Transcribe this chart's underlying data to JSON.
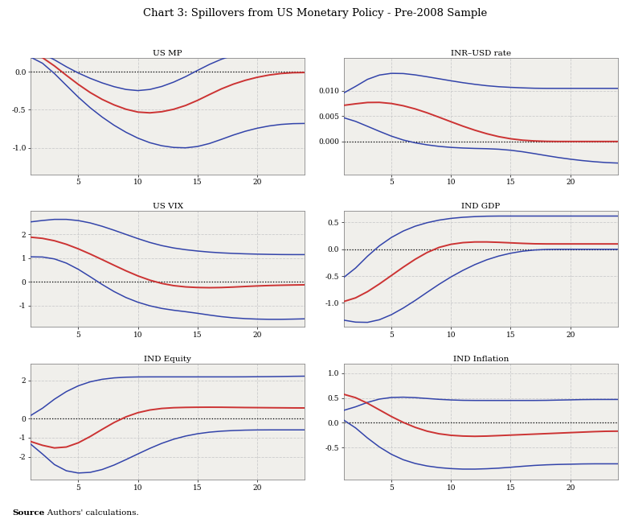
{
  "title": "Chart 3: Spillovers from US Monetary Policy - Pre-2008 Sample",
  "source_text": "Source: Authors' calculations.",
  "panels": [
    {
      "title": "US MP",
      "ylim": [
        -1.35,
        0.18
      ],
      "yticks": [
        0.0,
        -0.5,
        -1.0
      ],
      "yticklabels": [
        "0.0",
        "-0.5",
        "-1.0"
      ],
      "x": [
        1,
        2,
        3,
        4,
        5,
        6,
        7,
        8,
        9,
        10,
        11,
        12,
        13,
        14,
        15,
        16,
        17,
        18,
        19,
        20,
        21,
        22,
        23,
        24
      ],
      "red": [
        0.27,
        0.2,
        0.08,
        -0.05,
        -0.17,
        -0.28,
        -0.37,
        -0.44,
        -0.5,
        -0.54,
        -0.55,
        -0.53,
        -0.5,
        -0.45,
        -0.38,
        -0.3,
        -0.22,
        -0.16,
        -0.11,
        -0.07,
        -0.04,
        -0.02,
        -0.01,
        -0.01
      ],
      "blue_upper": [
        0.3,
        0.25,
        0.16,
        0.06,
        -0.02,
        -0.09,
        -0.15,
        -0.2,
        -0.24,
        -0.26,
        -0.24,
        -0.2,
        -0.14,
        -0.07,
        0.02,
        0.1,
        0.17,
        0.22,
        0.26,
        0.28,
        0.3,
        0.31,
        0.32,
        0.33
      ],
      "blue_lower": [
        0.22,
        0.13,
        -0.02,
        -0.18,
        -0.34,
        -0.48,
        -0.6,
        -0.71,
        -0.8,
        -0.88,
        -0.94,
        -0.98,
        -1.0,
        -1.01,
        -0.99,
        -0.95,
        -0.89,
        -0.83,
        -0.78,
        -0.74,
        -0.71,
        -0.69,
        -0.68,
        -0.68
      ]
    },
    {
      "title": "INR–USD rate",
      "ylim": [
        -0.0065,
        0.0165
      ],
      "yticks": [
        0.01,
        0.005,
        0.0
      ],
      "yticklabels": [
        "0.010",
        "0.005",
        "0.000"
      ],
      "x": [
        1,
        2,
        3,
        4,
        5,
        6,
        7,
        8,
        9,
        10,
        11,
        12,
        13,
        14,
        15,
        16,
        17,
        18,
        19,
        20,
        21,
        22,
        23,
        24
      ],
      "red": [
        0.007,
        0.0075,
        0.0078,
        0.0078,
        0.0076,
        0.0071,
        0.0065,
        0.0057,
        0.0048,
        0.0039,
        0.003,
        0.0022,
        0.0015,
        0.0009,
        0.0005,
        0.0002,
        0.0001,
        0.0,
        0.0,
        0.0,
        0.0,
        0.0,
        0.0,
        0.0
      ],
      "blue_upper": [
        0.009,
        0.011,
        0.0125,
        0.0133,
        0.0136,
        0.0135,
        0.0132,
        0.0128,
        0.0124,
        0.012,
        0.0116,
        0.0113,
        0.011,
        0.0108,
        0.0107,
        0.0106,
        0.0105,
        0.0105,
        0.0105,
        0.0105,
        0.0105,
        0.0105,
        0.0105,
        0.0105
      ],
      "blue_lower": [
        0.005,
        0.004,
        0.003,
        0.002,
        0.001,
        0.0002,
        -0.0003,
        -0.0007,
        -0.001,
        -0.0012,
        -0.0013,
        -0.0014,
        -0.0014,
        -0.0015,
        -0.0017,
        -0.002,
        -0.0024,
        -0.0028,
        -0.0032,
        -0.0035,
        -0.0038,
        -0.004,
        -0.0042,
        -0.0043
      ]
    },
    {
      "title": "US VIX",
      "ylim": [
        -1.9,
        3.0
      ],
      "yticks": [
        2,
        1,
        0,
        -1
      ],
      "yticklabels": [
        "2",
        "1",
        "0",
        "-1"
      ],
      "x": [
        1,
        2,
        3,
        4,
        5,
        6,
        7,
        8,
        9,
        10,
        11,
        12,
        13,
        14,
        15,
        16,
        17,
        18,
        19,
        20,
        21,
        22,
        23,
        24
      ],
      "red": [
        1.9,
        1.85,
        1.75,
        1.6,
        1.4,
        1.18,
        0.94,
        0.7,
        0.46,
        0.24,
        0.06,
        -0.08,
        -0.17,
        -0.22,
        -0.24,
        -0.25,
        -0.24,
        -0.22,
        -0.19,
        -0.17,
        -0.15,
        -0.14,
        -0.13,
        -0.12
      ],
      "blue_upper": [
        2.5,
        2.6,
        2.65,
        2.65,
        2.6,
        2.5,
        2.35,
        2.18,
        2.0,
        1.82,
        1.65,
        1.52,
        1.42,
        1.35,
        1.3,
        1.25,
        1.22,
        1.2,
        1.18,
        1.17,
        1.16,
        1.15,
        1.15,
        1.15
      ],
      "blue_lower": [
        1.05,
        1.08,
        1.0,
        0.82,
        0.55,
        0.22,
        -0.12,
        -0.42,
        -0.68,
        -0.87,
        -1.02,
        -1.13,
        -1.2,
        -1.25,
        -1.32,
        -1.4,
        -1.47,
        -1.52,
        -1.55,
        -1.57,
        -1.58,
        -1.58,
        -1.57,
        -1.55
      ]
    },
    {
      "title": "IND GDP",
      "ylim": [
        -1.45,
        0.72
      ],
      "yticks": [
        0.5,
        0.0,
        -0.5,
        -1.0
      ],
      "yticklabels": [
        "0.5",
        "0.0",
        "-0.5",
        "-1.0"
      ],
      "x": [
        1,
        2,
        3,
        4,
        5,
        6,
        7,
        8,
        9,
        10,
        11,
        12,
        13,
        14,
        15,
        16,
        17,
        18,
        19,
        20,
        21,
        22,
        23,
        24
      ],
      "red": [
        -1.0,
        -0.92,
        -0.8,
        -0.65,
        -0.49,
        -0.33,
        -0.18,
        -0.05,
        0.05,
        0.1,
        0.13,
        0.14,
        0.14,
        0.13,
        0.12,
        0.11,
        0.1,
        0.1,
        0.1,
        0.1,
        0.1,
        0.1,
        0.1,
        0.1
      ],
      "blue_upper": [
        -0.6,
        -0.35,
        -0.12,
        0.08,
        0.23,
        0.35,
        0.44,
        0.5,
        0.55,
        0.58,
        0.6,
        0.61,
        0.62,
        0.62,
        0.62,
        0.62,
        0.62,
        0.62,
        0.62,
        0.62,
        0.62,
        0.62,
        0.62,
        0.62
      ],
      "blue_lower": [
        -1.3,
        -1.38,
        -1.38,
        -1.33,
        -1.23,
        -1.1,
        -0.96,
        -0.8,
        -0.65,
        -0.51,
        -0.39,
        -0.28,
        -0.19,
        -0.12,
        -0.07,
        -0.03,
        -0.01,
        0.0,
        0.0,
        0.0,
        0.0,
        0.0,
        0.0,
        0.0
      ]
    },
    {
      "title": "IND Equity",
      "ylim": [
        -3.2,
        2.9
      ],
      "yticks": [
        2,
        0,
        -1,
        -2
      ],
      "yticklabels": [
        "2",
        "0",
        "-1",
        "-2"
      ],
      "x": [
        1,
        2,
        3,
        4,
        5,
        6,
        7,
        8,
        9,
        10,
        11,
        12,
        13,
        14,
        15,
        16,
        17,
        18,
        19,
        20,
        21,
        22,
        23,
        24
      ],
      "red": [
        -1.1,
        -1.45,
        -1.6,
        -1.55,
        -1.3,
        -0.95,
        -0.56,
        -0.18,
        0.12,
        0.34,
        0.47,
        0.55,
        0.58,
        0.59,
        0.6,
        0.6,
        0.6,
        0.59,
        0.58,
        0.58,
        0.57,
        0.57,
        0.56,
        0.56
      ],
      "blue_upper": [
        0.0,
        0.55,
        1.05,
        1.45,
        1.75,
        1.96,
        2.08,
        2.15,
        2.18,
        2.19,
        2.19,
        2.19,
        2.19,
        2.19,
        2.19,
        2.19,
        2.19,
        2.19,
        2.19,
        2.2,
        2.2,
        2.21,
        2.22,
        2.23
      ],
      "blue_lower": [
        -1.1,
        -1.9,
        -2.5,
        -2.8,
        -2.9,
        -2.85,
        -2.7,
        -2.45,
        -2.15,
        -1.85,
        -1.55,
        -1.28,
        -1.06,
        -0.9,
        -0.78,
        -0.7,
        -0.65,
        -0.62,
        -0.6,
        -0.59,
        -0.59,
        -0.59,
        -0.59,
        -0.59
      ]
    },
    {
      "title": "IND Inflation",
      "ylim": [
        -1.15,
        1.2
      ],
      "yticks": [
        1.0,
        0.5,
        0.0,
        -0.5
      ],
      "yticklabels": [
        "1.0",
        "0.5",
        "0.0",
        "-0.5"
      ],
      "x": [
        1,
        2,
        3,
        4,
        5,
        6,
        7,
        8,
        9,
        10,
        11,
        12,
        13,
        14,
        15,
        16,
        17,
        18,
        19,
        20,
        21,
        22,
        23,
        24
      ],
      "red": [
        0.6,
        0.52,
        0.4,
        0.26,
        0.12,
        0.0,
        -0.1,
        -0.18,
        -0.23,
        -0.26,
        -0.27,
        -0.28,
        -0.27,
        -0.26,
        -0.25,
        -0.24,
        -0.23,
        -0.22,
        -0.21,
        -0.2,
        -0.19,
        -0.18,
        -0.17,
        -0.17
      ],
      "blue_upper": [
        0.22,
        0.32,
        0.42,
        0.49,
        0.52,
        0.52,
        0.51,
        0.49,
        0.47,
        0.46,
        0.45,
        0.45,
        0.45,
        0.45,
        0.45,
        0.45,
        0.45,
        0.45,
        0.46,
        0.46,
        0.47,
        0.47,
        0.47,
        0.47
      ],
      "blue_lower": [
        0.12,
        -0.1,
        -0.32,
        -0.5,
        -0.65,
        -0.76,
        -0.83,
        -0.88,
        -0.91,
        -0.93,
        -0.94,
        -0.94,
        -0.93,
        -0.92,
        -0.9,
        -0.88,
        -0.86,
        -0.85,
        -0.84,
        -0.84,
        -0.83,
        -0.83,
        -0.83,
        -0.83
      ]
    }
  ],
  "red_color": "#cc3333",
  "blue_color": "#3344aa",
  "plot_bg": "#f0efeb",
  "outer_bg": "white",
  "grid_color": "#cccccc",
  "zero_line_color": "black",
  "spine_color": "#888888",
  "title_fontsize": 9.5,
  "panel_title_fontsize": 7.5,
  "tick_fontsize": 6.5,
  "source_fontsize": 7.5
}
